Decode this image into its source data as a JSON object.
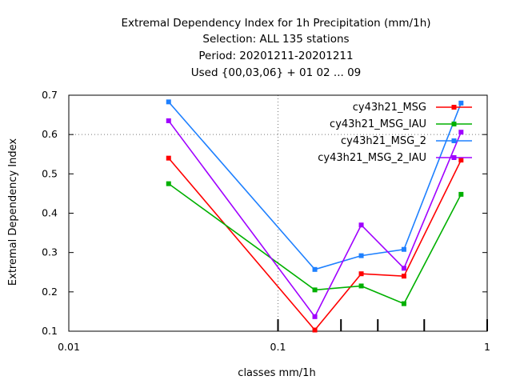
{
  "chart_data": {
    "type": "line",
    "title_lines": [
      "Extremal Dependency Index  for 1h Precipitation (mm/1h)",
      "Selection: ALL    135 stations",
      "Period: 20201211-20201211",
      "Used {00,03,06} + 01 02 ... 09"
    ],
    "xlabel": "classes mm/1h",
    "ylabel": "Extremal Dependency Index",
    "xscale": "log",
    "xlim": [
      0.01,
      1
    ],
    "ylim": [
      0.1,
      0.7
    ],
    "x_ticks": [
      {
        "value": 0.01,
        "label": "0.01"
      },
      {
        "value": 0.1,
        "label": "0.1"
      },
      {
        "value": 1,
        "label": "1"
      }
    ],
    "y_ticks": [
      {
        "value": 0.1,
        "label": "0.1"
      },
      {
        "value": 0.2,
        "label": "0.2"
      },
      {
        "value": 0.3,
        "label": "0.3"
      },
      {
        "value": 0.4,
        "label": "0.4"
      },
      {
        "value": 0.5,
        "label": "0.5"
      },
      {
        "value": 0.6,
        "label": "0.6"
      },
      {
        "value": 0.7,
        "label": "0.7"
      }
    ],
    "minor_x_ticks": [
      0.1,
      0.2,
      0.3,
      0.5,
      1
    ],
    "grid": "dotted at x=0.1 and y=0.6",
    "legend_position": "top-right",
    "x": [
      0.03,
      0.15,
      0.25,
      0.4,
      0.75
    ],
    "series": [
      {
        "name": "cy43h21_MSG",
        "color": "#ff0000",
        "values": [
          0.54,
          0.103,
          0.246,
          0.24,
          0.535
        ]
      },
      {
        "name": "cy43h21_MSG_IAU",
        "color": "#00b000",
        "values": [
          0.475,
          0.205,
          0.215,
          0.17,
          0.448
        ]
      },
      {
        "name": "cy43h21_MSG_2",
        "color": "#1e80ff",
        "values": [
          0.683,
          0.257,
          0.292,
          0.308,
          0.68
        ]
      },
      {
        "name": "cy43h21_MSG_2_IAU",
        "color": "#a000ff",
        "values": [
          0.635,
          0.137,
          0.37,
          0.26,
          0.606
        ]
      }
    ]
  }
}
